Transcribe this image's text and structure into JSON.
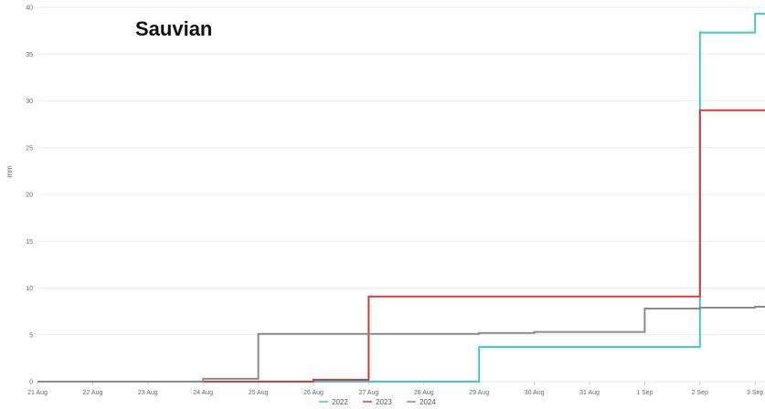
{
  "chart_data": {
    "type": "line",
    "step": true,
    "title": "Sauvian",
    "xlabel": "",
    "ylabel": "mm",
    "ylim": [
      0,
      40
    ],
    "yticks": [
      0,
      5,
      10,
      15,
      20,
      25,
      30,
      35,
      40
    ],
    "grid": true,
    "legend_position": "bottom",
    "categories": [
      "21 Aug",
      "22 Aug",
      "23 Aug",
      "24 Aug",
      "25 Aug",
      "26 Aug",
      "27 Aug",
      "28 Aug",
      "29 Aug",
      "30 Aug",
      "31 Aug",
      "1 Sep",
      "2 Sep",
      "3 Sep"
    ],
    "series": [
      {
        "name": "2022",
        "color": "#3ec9c9",
        "values": [
          0,
          0,
          0,
          0,
          0,
          0,
          0,
          0,
          3.7,
          3.7,
          3.7,
          3.7,
          37.3,
          39.3
        ]
      },
      {
        "name": "2023",
        "color": "#d93a3a",
        "values": [
          0,
          0,
          0,
          0,
          0,
          0.2,
          9.1,
          9.1,
          9.1,
          9.1,
          9.1,
          9.1,
          29.0,
          29.0
        ]
      },
      {
        "name": "2024",
        "color": "#8a8a8a",
        "values": [
          0,
          0,
          0,
          0.3,
          5.1,
          5.1,
          5.1,
          5.1,
          5.2,
          5.3,
          5.3,
          7.8,
          7.9,
          8.0
        ]
      }
    ]
  }
}
